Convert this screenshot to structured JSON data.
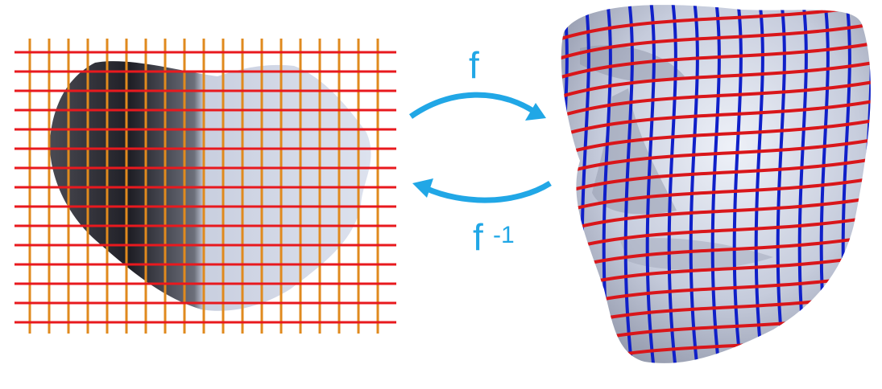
{
  "labels": {
    "forward": "f",
    "inverse_base": "f",
    "inverse_exponent": "-1"
  },
  "colors": {
    "arrow": "#21a7e6",
    "grid_horizontal": "#e8191e",
    "grid_vertical": "#e08a1e",
    "face_grid_horizontal": "#d9161a",
    "face_grid_vertical": "#1020c8",
    "surface_light": "#c9cfde",
    "surface_dark": "#2a2a30"
  },
  "icons": {
    "flat_parameterization": "flattened-face-mesh-with-grid",
    "surface": "3d-face-mesh-with-grid",
    "forward_arrow": "curved-arrow-right",
    "inverse_arrow": "curved-arrow-left"
  }
}
